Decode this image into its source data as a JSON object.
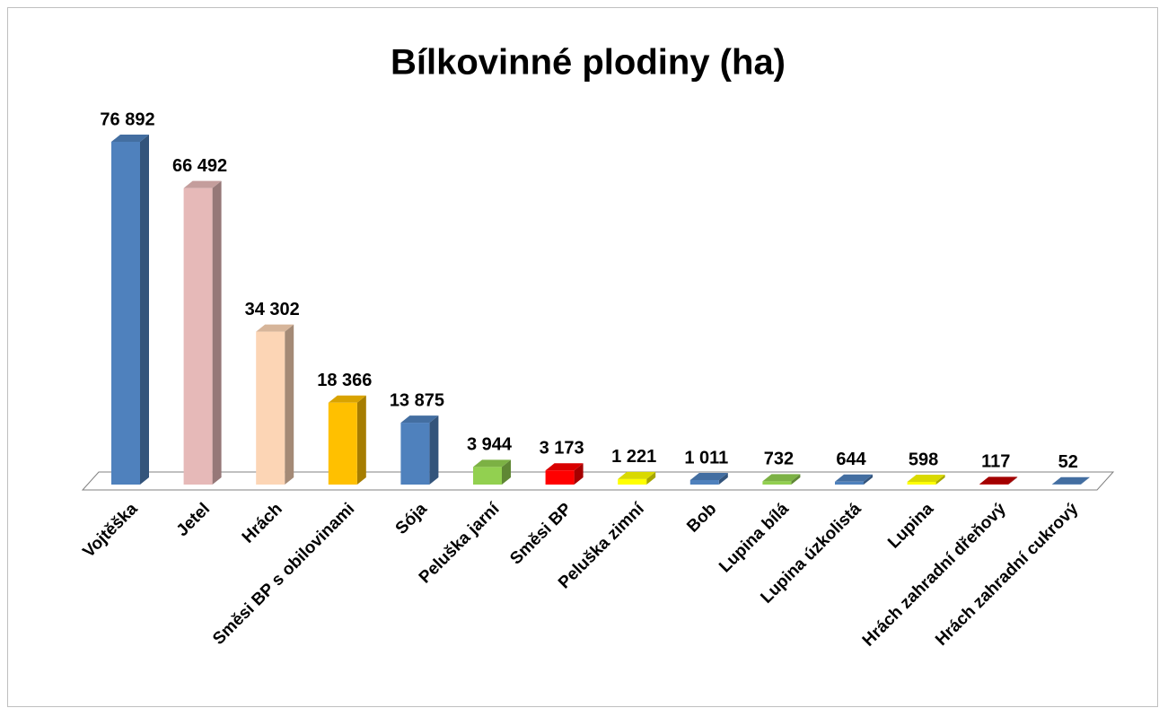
{
  "chart_data": {
    "type": "bar3d",
    "title": "Bílkovinné plodiny (ha)",
    "categories": [
      "Vojtěška",
      "Jetel",
      "Hrách",
      "Směsi BP s obilovinami",
      "Sója",
      "Peluška jarní",
      "Směsi BP",
      "Peluška zimní",
      "Bob",
      "Lupina bílá",
      "Lupina úzkolistá",
      "Lupina",
      "Hrách zahradní dřeňový",
      "Hrách zahradní cukrový"
    ],
    "values": [
      76892,
      66492,
      34302,
      18366,
      13875,
      3944,
      3173,
      1221,
      1011,
      732,
      644,
      598,
      117,
      52
    ],
    "value_labels": [
      "76 892",
      "66 492",
      "34 302",
      "18 366",
      "13 875",
      "3 944",
      "3 173",
      "1 221",
      "1 011",
      "732",
      "644",
      "598",
      "117",
      "52"
    ],
    "colors": [
      "#4f81bd",
      "#e6b9b8",
      "#fcd5b5",
      "#ffc000",
      "#4f81bd",
      "#92d050",
      "#ff0000",
      "#ffff00",
      "#4f81bd",
      "#92d050",
      "#4f81bd",
      "#ffff00",
      "#c00000",
      "#4f81bd"
    ]
  }
}
